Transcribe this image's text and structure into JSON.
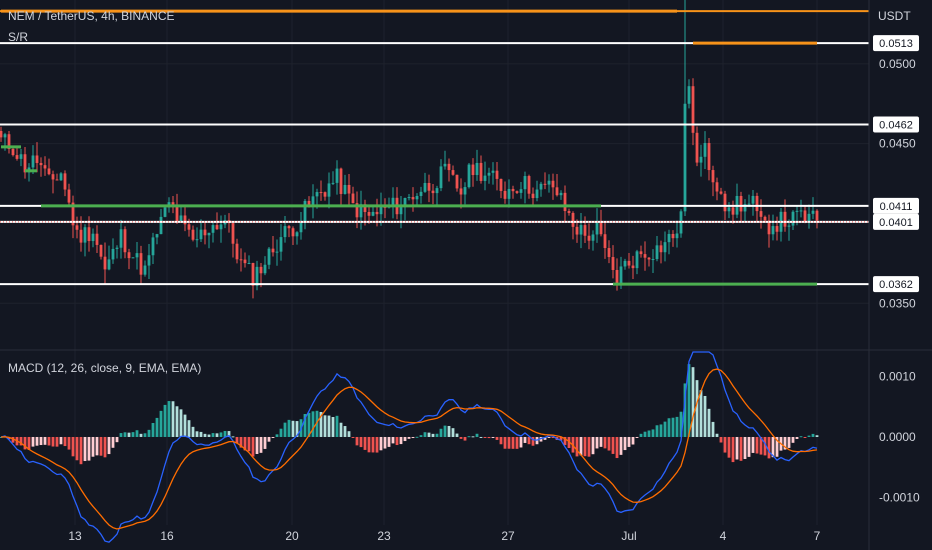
{
  "header": {
    "symbol_title": "NEM / TetherUS, 4h, BINANCE",
    "indicator_label": "S/R",
    "currency": "USDT"
  },
  "macd_panel": {
    "title": "MACD (12, 26, close, 9, EMA, EMA)"
  },
  "colors": {
    "background": "#131722",
    "axis_text": "#d1d4dc",
    "candle_up": "#26a69a",
    "candle_down": "#ef5350",
    "level_white": "#ffffff",
    "level_orange": "#f7931a",
    "level_green": "#4caf50",
    "macd_line": "#2962ff",
    "signal_line": "#ff6d00",
    "hist_up_strong": "#26a69a",
    "hist_up_weak": "#b2dfdb",
    "hist_down_strong": "#ef5350",
    "hist_down_weak": "#ffcdd2"
  },
  "chart_data": [
    {
      "type": "candlestick",
      "title": "NEM / TetherUS, 4h, BINANCE",
      "x_tick_labels": [
        "13",
        "16",
        "20",
        "23",
        "27",
        "Jul",
        "4",
        "7"
      ],
      "y_tick_labels": [
        "0.0500",
        "0.0450",
        "0.0350"
      ],
      "ylim": [
        0.0322,
        0.054
      ],
      "price_tags": [
        "0.0513",
        "0.0462",
        "0.0411",
        "0.0401",
        "0.0362"
      ],
      "levels": [
        {
          "price": 0.0533,
          "color": "orange"
        },
        {
          "price": 0.0513,
          "color": "white"
        },
        {
          "price": 0.0462,
          "color": "white"
        },
        {
          "price": 0.0411,
          "color": "white"
        },
        {
          "price": 0.0401,
          "color": "white"
        },
        {
          "price": 0.0362,
          "color": "white"
        }
      ],
      "sr_segments": [
        {
          "price": 0.0533,
          "from_bar": 0,
          "to_bar": 169,
          "color": "orange"
        },
        {
          "price": 0.0513,
          "from_bar": 173,
          "to_bar": 204,
          "color": "orange"
        },
        {
          "price": 0.0448,
          "from_bar": 0,
          "to_bar": 5,
          "color": "green"
        },
        {
          "price": 0.0433,
          "from_bar": 6,
          "to_bar": 9,
          "color": "green"
        },
        {
          "price": 0.0411,
          "from_bar": 10,
          "to_bar": 150,
          "color": "green"
        },
        {
          "price": 0.0362,
          "from_bar": 153,
          "to_bar": 204,
          "color": "green"
        }
      ],
      "close_path": [
        [
          0,
          0.0452
        ],
        [
          3,
          0.0448
        ],
        [
          6,
          0.0436
        ],
        [
          9,
          0.044
        ],
        [
          12,
          0.0425
        ],
        [
          15,
          0.0432
        ],
        [
          19,
          0.0392
        ],
        [
          23,
          0.0396
        ],
        [
          26,
          0.037
        ],
        [
          30,
          0.0392
        ],
        [
          33,
          0.038
        ],
        [
          36,
          0.037
        ],
        [
          39,
          0.0395
        ],
        [
          42,
          0.0412
        ],
        [
          45,
          0.04
        ],
        [
          48,
          0.0388
        ],
        [
          52,
          0.0398
        ],
        [
          56,
          0.0402
        ],
        [
          60,
          0.0375
        ],
        [
          63,
          0.0367
        ],
        [
          66,
          0.0376
        ],
        [
          70,
          0.0392
        ],
        [
          74,
          0.04
        ],
        [
          77,
          0.0412
        ],
        [
          80,
          0.042
        ],
        [
          84,
          0.0428
        ],
        [
          88,
          0.0411
        ],
        [
          92,
          0.0404
        ],
        [
          96,
          0.0409
        ],
        [
          100,
          0.0412
        ],
        [
          104,
          0.042
        ],
        [
          108,
          0.0425
        ],
        [
          111,
          0.0432
        ],
        [
          115,
          0.042
        ],
        [
          118,
          0.0436
        ],
        [
          122,
          0.043
        ],
        [
          126,
          0.042
        ],
        [
          130,
          0.0426
        ],
        [
          134,
          0.042
        ],
        [
          138,
          0.0424
        ],
        [
          140,
          0.0414
        ],
        [
          143,
          0.04
        ],
        [
          146,
          0.0392
        ],
        [
          149,
          0.0396
        ],
        [
          152,
          0.0375
        ],
        [
          154,
          0.0366
        ],
        [
          156,
          0.0374
        ],
        [
          160,
          0.0381
        ],
        [
          164,
          0.0384
        ],
        [
          168,
          0.0392
        ],
        [
          170,
          0.0402
        ],
        [
          171,
          0.0475
        ],
        [
          172,
          0.0486
        ],
        [
          174,
          0.0436
        ],
        [
          176,
          0.0445
        ],
        [
          178,
          0.043
        ],
        [
          180,
          0.0422
        ],
        [
          182,
          0.0404
        ],
        [
          184,
          0.0414
        ],
        [
          186,
          0.0411
        ],
        [
          188,
          0.0412
        ],
        [
          190,
          0.0398
        ],
        [
          193,
          0.04
        ],
        [
          196,
          0.0402
        ],
        [
          198,
          0.0402
        ],
        [
          200,
          0.0405
        ],
        [
          202,
          0.0403
        ],
        [
          204,
          0.0401
        ]
      ],
      "spike": {
        "bar": 171,
        "high": 0.054
      }
    },
    {
      "type": "line",
      "title": "MACD (12, 26, close, 9, EMA, EMA)",
      "y_tick_labels": [
        "0.0010",
        "0.0000",
        "-0.0010"
      ],
      "ylim": [
        -0.00145,
        0.0014
      ],
      "series": [
        {
          "name": "MACD"
        },
        {
          "name": "Signal"
        },
        {
          "name": "Histogram"
        }
      ]
    }
  ]
}
